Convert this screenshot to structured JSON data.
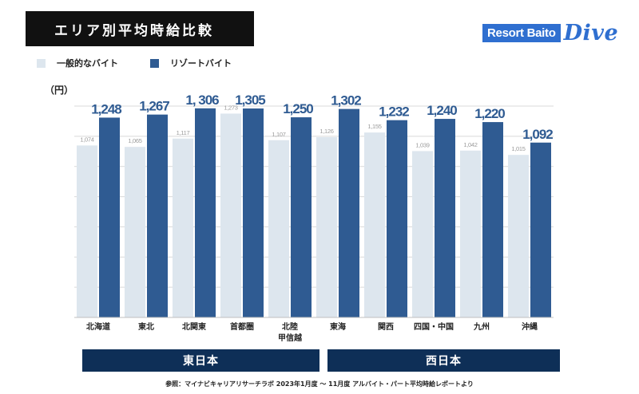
{
  "header": {
    "title": "エリア別平均時給比較",
    "logo_text": "Resort Baito",
    "logo_script": "Dive"
  },
  "legend": {
    "items": [
      {
        "label": "一般的なバイト",
        "color": "#dde6ee"
      },
      {
        "label": "リゾートバイト",
        "color": "#2f5b92"
      }
    ]
  },
  "unit_label": "（円）",
  "chart_data": {
    "type": "bar",
    "title": "エリア別平均時給比較",
    "ylabel": "円",
    "ylim": [
      0,
      1320
    ],
    "grid": true,
    "categories": [
      "北海道",
      "東北",
      "北関東",
      "首都圏",
      "北陸\n甲信越",
      "東海",
      "関西",
      "四国・中国",
      "九州",
      "沖縄"
    ],
    "series": [
      {
        "name": "一般的なバイト",
        "color": "#dde6ee",
        "values": [
          1074,
          1065,
          1117,
          1273,
          1107,
          1126,
          1155,
          1039,
          1042,
          1015
        ],
        "labels": [
          "1,074",
          "1,065",
          "1,117",
          "1,273",
          "1,107",
          "1,126",
          "1,155",
          "1,039",
          "1,042",
          "1,015"
        ]
      },
      {
        "name": "リゾートバイト",
        "color": "#2f5b92",
        "values": [
          1248,
          1267,
          1306,
          1305,
          1250,
          1302,
          1232,
          1240,
          1220,
          1092
        ],
        "labels": [
          "1,248",
          "1,267",
          "1, 306",
          "1,305",
          "1,250",
          "1,302",
          "1,232",
          "1,240",
          "1,220",
          "1,092"
        ]
      }
    ]
  },
  "regions": [
    {
      "label": "東日本"
    },
    {
      "label": "西日本"
    }
  ],
  "source": "参照：マイナビキャリアリサーチラボ 2023年1月度 〜 11月度 アルバイト・パート平均時給レポートより"
}
